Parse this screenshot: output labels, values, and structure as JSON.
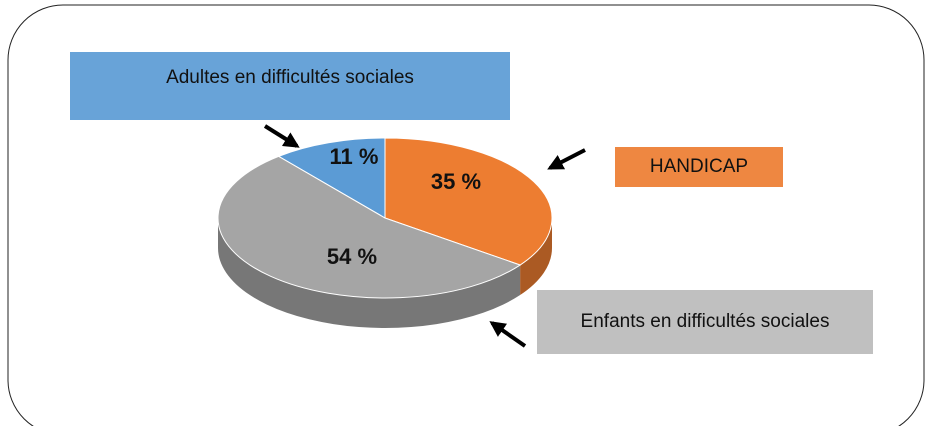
{
  "chart_data": {
    "type": "pie3d",
    "categories": [
      "Adultes en difficultés sociales",
      "HANDICAP",
      "Enfants en difficultés sociales"
    ],
    "values": [
      11,
      35,
      54
    ],
    "value_labels": [
      "11 %",
      "35 %",
      "54 %"
    ],
    "colors": [
      "#5b9bd5",
      "#ed7d31",
      "#a5a5a5"
    ]
  }
}
